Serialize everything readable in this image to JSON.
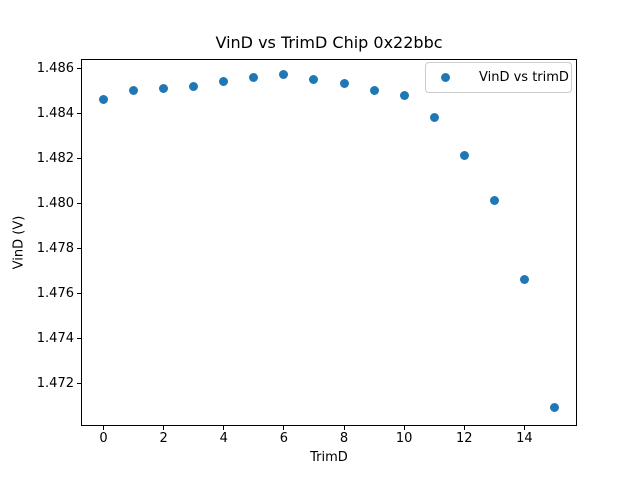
{
  "figure": {
    "background": "#ffffff",
    "text_color": "#000000",
    "spine_color": "#000000"
  },
  "chart_data": {
    "type": "scatter",
    "title": "VinD vs TrimD Chip 0x22bbc",
    "xlabel": "TrimD",
    "ylabel": "VinD (V)",
    "legend": {
      "label": "VinD vs trimD",
      "position": "upper right"
    },
    "marker_color": "#1f77b4",
    "grid": false,
    "x": [
      0,
      1,
      2,
      3,
      4,
      5,
      6,
      7,
      8,
      9,
      10,
      11,
      12,
      13,
      14,
      15
    ],
    "y": [
      1.4846,
      1.485,
      1.4851,
      1.4852,
      1.4854,
      1.4856,
      1.4857,
      1.4855,
      1.4853,
      1.485,
      1.4848,
      1.4838,
      1.4821,
      1.4801,
      1.4766,
      1.4709
    ],
    "xlim": [
      -0.75,
      15.75
    ],
    "ylim": [
      1.4701,
      1.4864
    ],
    "xticks": {
      "values": [
        0,
        2,
        4,
        6,
        8,
        10,
        12,
        14
      ],
      "labels": [
        "0",
        "2",
        "4",
        "6",
        "8",
        "10",
        "12",
        "14"
      ]
    },
    "yticks": {
      "values": [
        1.472,
        1.474,
        1.476,
        1.478,
        1.48,
        1.482,
        1.484,
        1.486
      ],
      "labels": [
        "1.472",
        "1.474",
        "1.476",
        "1.478",
        "1.480",
        "1.482",
        "1.484",
        "1.486"
      ]
    }
  }
}
